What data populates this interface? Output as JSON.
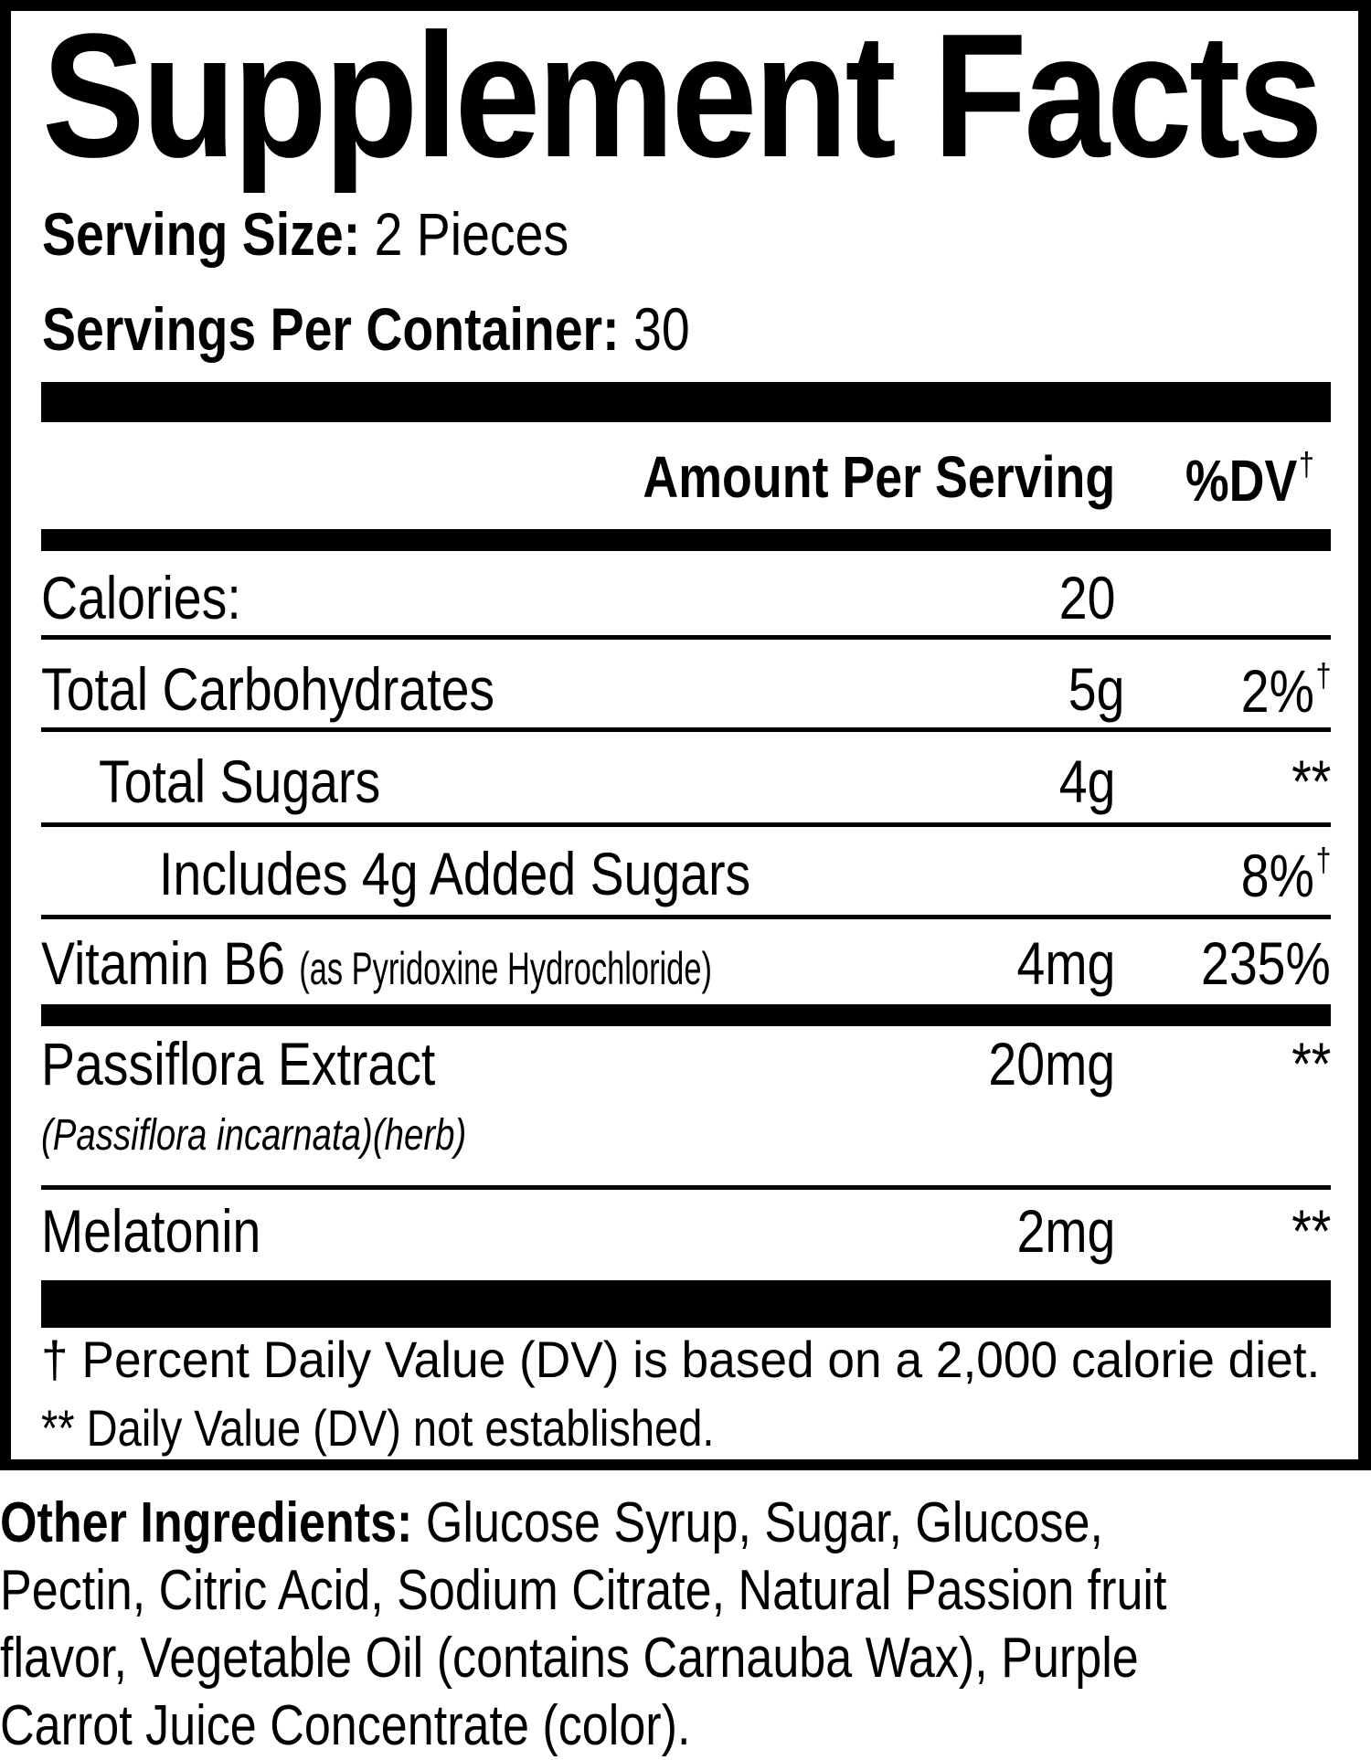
{
  "title": "Supplement Facts",
  "serving_size": {
    "label": "Serving Size:",
    "value": "2 Pieces"
  },
  "servings_per_container": {
    "label": "Servings Per Container:",
    "value": "30"
  },
  "header": {
    "amount": "Amount Per Serving",
    "dv": "%DV",
    "dv_mark": "†"
  },
  "rows": [
    {
      "name": "Calories:",
      "amount": "20",
      "dv": "",
      "mark": ""
    },
    {
      "name": "Total Carbohydrates",
      "amount": "5g",
      "dv": "2%",
      "mark": "†"
    },
    {
      "name": "Total Sugars",
      "amount": "4g",
      "dv": "**",
      "mark": ""
    },
    {
      "name": "Includes 4g Added Sugars",
      "amount": "",
      "dv": "8%",
      "mark": "†"
    },
    {
      "name": "Vitamin B6",
      "detail": "(as Pyridoxine Hydrochloride)",
      "amount": "4mg",
      "dv": "235%",
      "mark": ""
    },
    {
      "name": "Passiflora Extract",
      "detail": "(Passiflora incarnata)(herb)",
      "amount": "20mg",
      "dv": "**",
      "mark": ""
    },
    {
      "name": "Melatonin",
      "amount": "2mg",
      "dv": "**",
      "mark": ""
    }
  ],
  "footnotes": [
    "† Percent Daily Value (DV) is based on a 2,000 calorie diet.",
    "** Daily Value (DV) not established."
  ],
  "other_ingredients": {
    "label": "Other Ingredients:",
    "lines": [
      " Glucose Syrup, Sugar, Glucose,",
      "Pectin, Citric Acid, Sodium Citrate, Natural Passion fruit",
      "flavor, Vegetable Oil (contains Carnauba Wax), Purple",
      "Carrot Juice Concentrate (color)."
    ]
  }
}
